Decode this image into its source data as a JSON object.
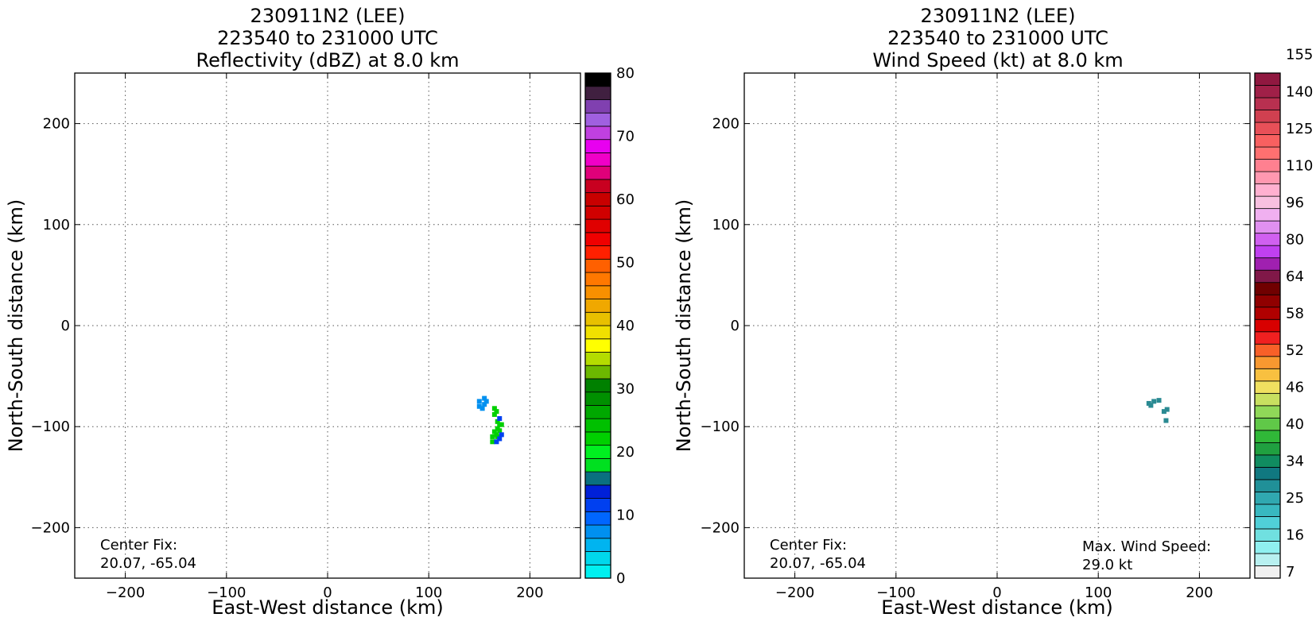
{
  "panels": [
    {
      "title_lines": [
        "230911N2 (LEE)",
        "223540 to 231000 UTC",
        "Reflectivity (dBZ) at 8.0 km"
      ],
      "center_fix_label": "Center Fix:",
      "center_fix_value": "20.07, -65.04"
    },
    {
      "title_lines": [
        "230911N2 (LEE)",
        "223540 to 231000 UTC",
        "Wind Speed (kt) at 8.0 km"
      ],
      "center_fix_label": "Center Fix:",
      "center_fix_value": "20.07, -65.04",
      "max_wind_label": "Max. Wind Speed:",
      "max_wind_value": "29.0 kt"
    }
  ],
  "chart_data": [
    {
      "type": "heatmap",
      "title": "230911N2 (LEE) 223540 to 231000 UTC Reflectivity (dBZ) at 8.0 km",
      "xlabel": "East-West distance (km)",
      "ylabel": "North-South distance (km)",
      "xlim": [
        -250,
        250
      ],
      "ylim": [
        -250,
        250
      ],
      "xticks": [
        -200,
        -100,
        0,
        100,
        200
      ],
      "yticks": [
        -200,
        -100,
        0,
        100,
        200
      ],
      "xtick_labels": [
        "−200",
        "−100",
        "0",
        "100",
        "200"
      ],
      "ytick_labels": [
        "−200",
        "−100",
        "0",
        "100",
        "200"
      ],
      "grid": true,
      "colorbar": {
        "min": 0,
        "max": 80,
        "ticks": [
          0,
          10,
          20,
          30,
          40,
          50,
          60,
          70,
          80
        ],
        "colors": [
          "#00f0f0",
          "#00d8ec",
          "#00b4f0",
          "#0090f0",
          "#0066ff",
          "#0040f0",
          "#0020d8",
          "#0a7080",
          "#00e020",
          "#00f020",
          "#00d000",
          "#00c000",
          "#00a800",
          "#009000",
          "#008000",
          "#6cb800",
          "#b4dc00",
          "#ffff00",
          "#f0e000",
          "#e8c000",
          "#f0a800",
          "#f89000",
          "#ff7800",
          "#ff6000",
          "#ff2000",
          "#f00000",
          "#e00000",
          "#d00000",
          "#c80000",
          "#c80020",
          "#e0007a",
          "#f000c8",
          "#e800f0",
          "#c040e0",
          "#a060e0",
          "#8040b0",
          "#402040",
          "#000000"
        ]
      },
      "points": [
        {
          "x": 150,
          "y": -75,
          "v": 8
        },
        {
          "x": 155,
          "y": -72,
          "v": 8
        },
        {
          "x": 150,
          "y": -80,
          "v": 8
        },
        {
          "x": 155,
          "y": -78,
          "v": 8
        },
        {
          "x": 157,
          "y": -75,
          "v": 8
        },
        {
          "x": 153,
          "y": -82,
          "v": 8
        },
        {
          "x": 165,
          "y": -82,
          "v": 22
        },
        {
          "x": 167,
          "y": -85,
          "v": 22
        },
        {
          "x": 165,
          "y": -88,
          "v": 22
        },
        {
          "x": 168,
          "y": -95,
          "v": 22
        },
        {
          "x": 170,
          "y": -98,
          "v": 22
        },
        {
          "x": 168,
          "y": -102,
          "v": 22
        },
        {
          "x": 165,
          "y": -105,
          "v": 22
        },
        {
          "x": 163,
          "y": -110,
          "v": 22
        },
        {
          "x": 163,
          "y": -115,
          "v": 22
        },
        {
          "x": 167,
          "y": -108,
          "v": 22
        },
        {
          "x": 170,
          "y": -104,
          "v": 22
        },
        {
          "x": 172,
          "y": -98,
          "v": 22
        },
        {
          "x": 168,
          "y": -110,
          "v": 22
        },
        {
          "x": 170,
          "y": -92,
          "v": 12
        },
        {
          "x": 172,
          "y": -108,
          "v": 12
        },
        {
          "x": 170,
          "y": -112,
          "v": 12
        },
        {
          "x": 167,
          "y": -115,
          "v": 12
        }
      ]
    },
    {
      "type": "heatmap",
      "title": "230911N2 (LEE) 223540 to 231000 UTC Wind Speed (kt) at 8.0 km",
      "xlabel": "East-West distance (km)",
      "ylabel": "North-South distance (km)",
      "xlim": [
        -250,
        250
      ],
      "ylim": [
        -250,
        250
      ],
      "xticks": [
        -200,
        -100,
        0,
        100,
        200
      ],
      "yticks": [
        -200,
        -100,
        0,
        100,
        200
      ],
      "xtick_labels": [
        "−200",
        "−100",
        "0",
        "100",
        "200"
      ],
      "ytick_labels": [
        "−200",
        "−100",
        "0",
        "100",
        "200"
      ],
      "grid": true,
      "colorbar": {
        "tick_labels": [
          "7",
          "16",
          "25",
          "34",
          "40",
          "46",
          "52",
          "58",
          "64",
          "80",
          "96",
          "110",
          "125",
          "140",
          "155"
        ],
        "colors": [
          "#f0f0f0",
          "#b8f0f0",
          "#90f0f0",
          "#70e0e0",
          "#50d0d8",
          "#38b8c0",
          "#30a8b0",
          "#209098",
          "#107880",
          "#108c60",
          "#20a040",
          "#30b838",
          "#60c848",
          "#90d858",
          "#c8e060",
          "#f0e060",
          "#f8c040",
          "#f89830",
          "#f86028",
          "#f02020",
          "#d80000",
          "#b00000",
          "#900000",
          "#700000",
          "#801848",
          "#a020b0",
          "#c040f0",
          "#d060f0",
          "#e090f0",
          "#f0b0f0",
          "#f8c0e0",
          "#ffb0d0",
          "#ff98b0",
          "#ff8090",
          "#ff7070",
          "#f86060",
          "#e85058",
          "#d04050",
          "#b83050",
          "#a02048",
          "#901840"
        ]
      },
      "max_wind_kt": 29.0,
      "points": [
        {
          "x": 150,
          "y": -77,
          "v": 28
        },
        {
          "x": 155,
          "y": -75,
          "v": 28
        },
        {
          "x": 160,
          "y": -74,
          "v": 28
        },
        {
          "x": 152,
          "y": -79,
          "v": 28
        },
        {
          "x": 165,
          "y": -85,
          "v": 28
        },
        {
          "x": 168,
          "y": -83,
          "v": 28
        },
        {
          "x": 167,
          "y": -94,
          "v": 28
        }
      ]
    }
  ]
}
